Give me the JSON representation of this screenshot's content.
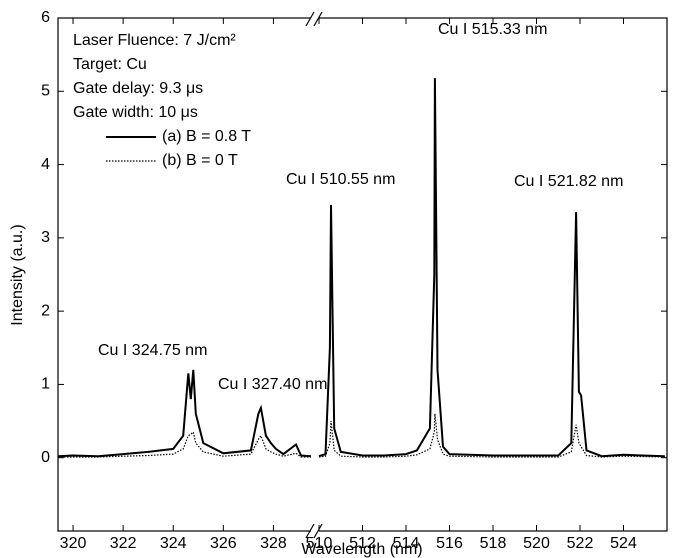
{
  "chart_data": {
    "type": "line",
    "x_label": "Wavelength (nm)",
    "y_label": "Intensity (a.u.)",
    "broken_x_axis": true,
    "xlim": [
      [
        319.4,
        329.5
      ],
      [
        510,
        526
      ]
    ],
    "xticks": [
      320,
      322,
      324,
      326,
      328,
      510,
      512,
      514,
      516,
      518,
      520,
      522,
      524
    ],
    "ylim": [
      -1,
      6
    ],
    "yticks": [
      0,
      1,
      2,
      3,
      4,
      5,
      6
    ],
    "info_text": [
      "Laser Fluence: 7 J/cm²",
      "Target: Cu",
      "Gate delay: 9.3 μs",
      "Gate width: 10 μs"
    ],
    "annotations": [
      "Cu I 324.75 nm",
      "Cu I 327.40 nm",
      "Cu I 510.55 nm",
      "Cu I 515.33 nm",
      "Cu I 521.82 nm"
    ],
    "x": [
      319.4,
      320,
      321,
      322,
      323,
      324,
      324.4,
      324.6,
      324.7,
      324.8,
      324.9,
      325.2,
      326,
      327.1,
      327.4,
      327.5,
      327.7,
      327.9,
      328.1,
      328.4,
      328.9,
      329.1,
      329.5,
      null,
      510,
      510.3,
      510.5,
      510.55,
      510.7,
      511,
      512,
      513,
      514,
      514.5,
      515.1,
      515.3,
      515.33,
      515.45,
      515.7,
      516,
      518,
      520,
      521,
      521.6,
      521.82,
      521.95,
      522.05,
      522.3,
      523,
      524,
      525.9
    ],
    "series": [
      {
        "name": "(a) B = 0.8 T",
        "color": "#000000",
        "line_style": "solid",
        "values": [
          0.02,
          0.03,
          0.02,
          0.05,
          0.08,
          0.12,
          0.3,
          1.15,
          0.8,
          1.2,
          0.6,
          0.2,
          0.06,
          0.1,
          0.6,
          0.68,
          0.3,
          0.2,
          0.12,
          0.05,
          0.18,
          0.03,
          0.02,
          null,
          0.02,
          0.05,
          1.5,
          3.45,
          0.4,
          0.08,
          0.03,
          0.03,
          0.05,
          0.1,
          0.4,
          2.5,
          5.18,
          1.2,
          0.15,
          0.05,
          0.03,
          0.03,
          0.03,
          0.2,
          3.35,
          0.9,
          0.85,
          0.1,
          0.02,
          0.04,
          0.02
        ]
      },
      {
        "name": "(b) B = 0 T",
        "color": "#000000",
        "line_style": "dotted",
        "values": [
          0.01,
          0.01,
          0.01,
          0.02,
          0.03,
          0.05,
          0.12,
          0.3,
          0.32,
          0.35,
          0.2,
          0.08,
          0.02,
          0.05,
          0.25,
          0.3,
          0.12,
          0.08,
          0.05,
          0.02,
          0.06,
          0.01,
          0.01,
          null,
          0.01,
          0.02,
          0.2,
          0.5,
          0.1,
          0.02,
          0.01,
          0.01,
          0.02,
          0.04,
          0.12,
          0.35,
          0.6,
          0.25,
          0.05,
          0.02,
          0.01,
          0.01,
          0.01,
          0.08,
          0.45,
          0.2,
          0.15,
          0.03,
          0.01,
          0.02,
          0.01
        ]
      }
    ]
  }
}
